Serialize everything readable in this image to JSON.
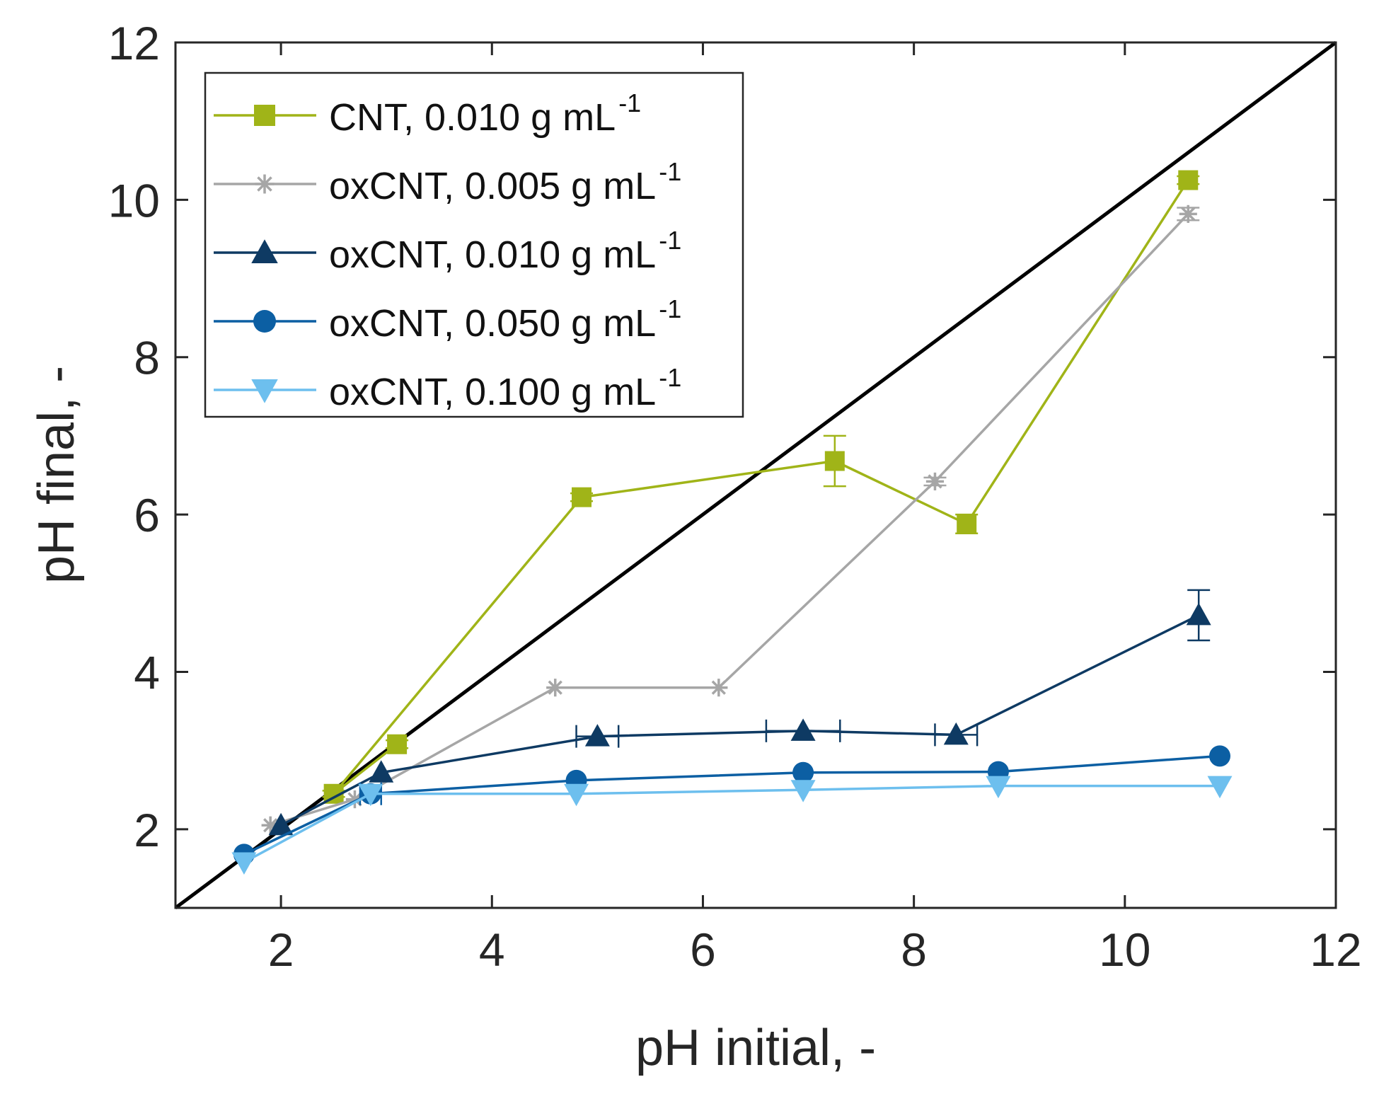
{
  "chart_data": {
    "type": "line",
    "xlabel": "pH initial, -",
    "ylabel": "pH final, -",
    "xlim": [
      1,
      12
    ],
    "ylim": [
      1,
      12
    ],
    "xticks": [
      2,
      4,
      6,
      8,
      10,
      12
    ],
    "yticks": [
      2,
      4,
      6,
      8,
      10,
      12
    ],
    "xtick_labels": [
      "2",
      "4",
      "6",
      "8",
      "10",
      "12"
    ],
    "ytick_labels": [
      "2",
      "4",
      "6",
      "8",
      "10",
      "12"
    ],
    "legend_position": "top-left",
    "reference_line": {
      "name": "y = x",
      "color": "#000000",
      "from": [
        1,
        1
      ],
      "to": [
        12,
        12
      ]
    },
    "series": [
      {
        "name": "CNT, 0.010 g mL",
        "unit_superscript": "-1",
        "color": "#a0b418",
        "marker": "square",
        "x": [
          3.1,
          2.5,
          4.85,
          7.25,
          8.5,
          10.6
        ],
        "y": [
          3.08,
          2.45,
          6.22,
          6.68,
          5.88,
          10.25
        ],
        "y_err": [
          0.05,
          0.04,
          0.05,
          0.32,
          0.12,
          0.05
        ],
        "x_err": [
          0,
          0,
          0,
          0,
          0,
          0
        ]
      },
      {
        "name": "oxCNT, 0.005 g mL",
        "unit_superscript": "-1",
        "color": "#a6a6a6",
        "marker": "asterisk",
        "x": [
          1.9,
          2.7,
          4.6,
          6.15,
          8.2,
          10.6
        ],
        "y": [
          2.05,
          2.38,
          3.8,
          3.8,
          6.42,
          9.82
        ],
        "y_err": [
          0,
          0,
          0,
          0,
          0.05,
          0.08
        ],
        "x_err": [
          0,
          0,
          0,
          0,
          0,
          0
        ]
      },
      {
        "name": "oxCNT, 0.010 g mL",
        "unit_superscript": "-1",
        "color": "#0e3a63",
        "marker": "triangle-up",
        "x": [
          2.0,
          2.95,
          5.0,
          6.95,
          8.4,
          10.7
        ],
        "y": [
          2.05,
          2.72,
          3.18,
          3.25,
          3.2,
          4.72
        ],
        "y_err": [
          0,
          0,
          0,
          0,
          0,
          0.32
        ],
        "x_err": [
          0,
          0,
          0.2,
          0.35,
          0.2,
          0
        ]
      },
      {
        "name": "oxCNT, 0.050 g mL",
        "unit_superscript": "-1",
        "color": "#0c5fa3",
        "marker": "circle",
        "x": [
          1.65,
          2.85,
          4.8,
          6.95,
          8.8,
          10.9
        ],
        "y": [
          1.68,
          2.45,
          2.62,
          2.72,
          2.73,
          2.93
        ],
        "y_err": [
          0,
          0,
          0,
          0,
          0,
          0
        ],
        "x_err": [
          0,
          0.1,
          0,
          0,
          0,
          0
        ]
      },
      {
        "name": "oxCNT, 0.100 g mL",
        "unit_superscript": "-1",
        "color": "#6dbfee",
        "marker": "triangle-down",
        "x": [
          1.65,
          2.85,
          4.8,
          6.95,
          8.8,
          10.9
        ],
        "y": [
          1.58,
          2.45,
          2.45,
          2.5,
          2.55,
          2.55
        ],
        "y_err": [
          0,
          0,
          0,
          0,
          0,
          0
        ],
        "x_err": [
          0,
          0,
          0,
          0,
          0,
          0
        ]
      }
    ]
  }
}
